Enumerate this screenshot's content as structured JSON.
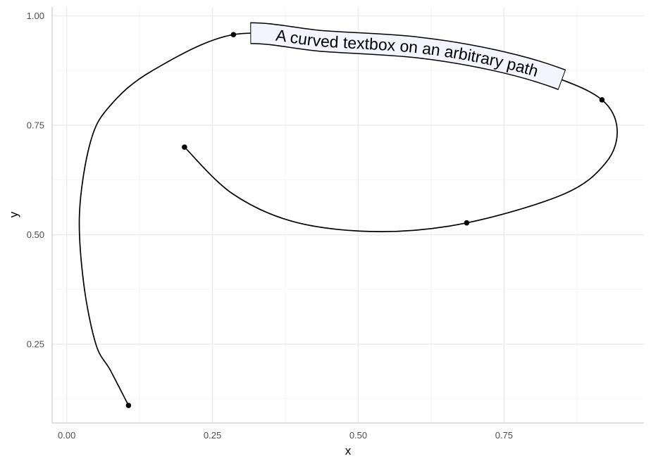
{
  "chart_data": {
    "type": "line",
    "title": "",
    "xlabel": "x",
    "ylabel": "y",
    "xlim": [
      -0.025,
      0.99
    ],
    "ylim": [
      0.07,
      1.02
    ],
    "x_ticks": [
      "0.00",
      "0.25",
      "0.50",
      "0.75"
    ],
    "y_ticks": [
      "0.25",
      "0.50",
      "0.75",
      "1.00"
    ],
    "grid": true,
    "points": [
      {
        "x": 0.106,
        "y": 0.11
      },
      {
        "x": 0.286,
        "y": 0.957
      },
      {
        "x": 0.918,
        "y": 0.808
      },
      {
        "x": 0.686,
        "y": 0.527
      },
      {
        "x": 0.202,
        "y": 0.7
      }
    ],
    "curve": [
      [
        0.106,
        0.11
      ],
      [
        0.075,
        0.19
      ],
      [
        0.05,
        0.25
      ],
      [
        0.029,
        0.39
      ],
      [
        0.022,
        0.552
      ],
      [
        0.041,
        0.713
      ],
      [
        0.074,
        0.794
      ],
      [
        0.146,
        0.874
      ],
      [
        0.286,
        0.957
      ],
      [
        0.442,
        0.942
      ],
      [
        0.6,
        0.928
      ],
      [
        0.732,
        0.899
      ],
      [
        0.841,
        0.858
      ],
      [
        0.918,
        0.808
      ],
      [
        0.944,
        0.741
      ],
      [
        0.925,
        0.665
      ],
      [
        0.853,
        0.593
      ],
      [
        0.686,
        0.527
      ],
      [
        0.539,
        0.507
      ],
      [
        0.394,
        0.528
      ],
      [
        0.285,
        0.593
      ],
      [
        0.202,
        0.7
      ]
    ],
    "label": {
      "text": "A curved textbox on an arbitrary path",
      "fill": "#f4f4ff",
      "border": "#000000"
    },
    "line_color": "#000000"
  }
}
